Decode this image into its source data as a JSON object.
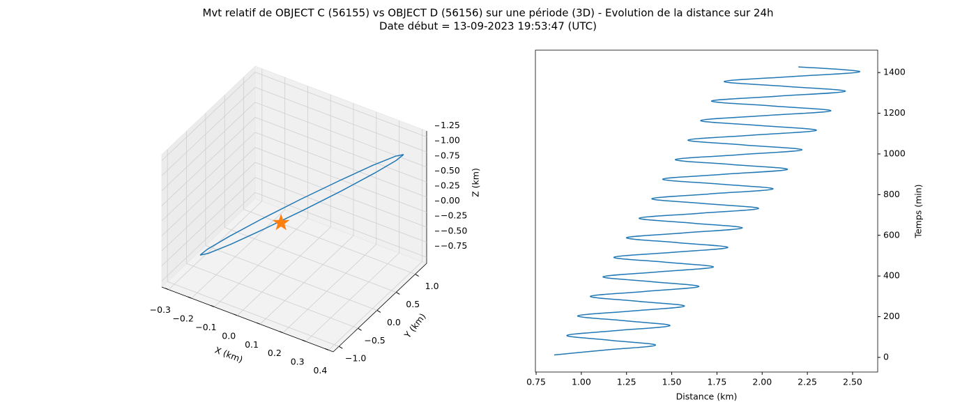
{
  "title": "Mvt relatif de OBJECT C (56155) vs OBJECT D (56156) sur une période (3D) - Evolution de la distance sur 24h",
  "subtitle": "Date début = 13-09-2023 19:53:47 (UTC)",
  "chart_data": [
    {
      "type": "line3d",
      "xlabel": "X (km)",
      "ylabel": "Y (km)",
      "zlabel": "Z (km)",
      "xlim": [
        -0.33,
        0.42
      ],
      "ylim": [
        -1.15,
        1.3
      ],
      "zlim": [
        -0.85,
        1.35
      ],
      "xticks": [
        {
          "value": -0.3,
          "label": "−0.3"
        },
        {
          "value": -0.2,
          "label": "−0.2"
        },
        {
          "value": -0.1,
          "label": "−0.1"
        },
        {
          "value": 0,
          "label": "0.0"
        },
        0.1,
        0.2,
        0.3,
        0.4
      ],
      "yticks": [
        {
          "value": -1,
          "label": "−1.0"
        },
        {
          "value": -0.5,
          "label": "−0.5"
        },
        {
          "value": 0,
          "label": "0.0"
        },
        0.5,
        {
          "value": 1,
          "label": "1.0"
        }
      ],
      "zticks": [
        {
          "value": -0.75,
          "label": "−0.75"
        },
        {
          "value": -0.5,
          "label": "−0.50"
        },
        {
          "value": -0.25,
          "label": "−0.25"
        },
        {
          "value": 0,
          "label": "0.00"
        },
        0.25,
        {
          "value": 0.5,
          "label": "0.50"
        },
        0.75,
        {
          "value": 1,
          "label": "1.00"
        },
        1.25
      ],
      "grid": true,
      "series": [
        {
          "color": "#1f77b4",
          "x": [
            0.376,
            0.356,
            0.292,
            0.194,
            0.076,
            -0.044,
            -0.146,
            -0.217,
            -0.244,
            -0.224,
            -0.16,
            -0.062,
            0.056,
            0.176,
            0.278,
            0.349,
            0.376
          ],
          "y": [
            0.96,
            0.887,
            0.702,
            0.433,
            0.12,
            -0.188,
            -0.444,
            -0.61,
            -0.66,
            -0.587,
            -0.402,
            -0.133,
            0.18,
            0.488,
            0.744,
            0.91,
            0.96
          ],
          "z": [
            1.1,
            1.017,
            0.825,
            0.554,
            0.245,
            -0.055,
            -0.3,
            -0.453,
            -0.49,
            -0.407,
            -0.215,
            0.056,
            0.365,
            0.665,
            0.91,
            1.063,
            1.1
          ]
        },
        {
          "color": "#ff7f0e",
          "marker": "star",
          "x": [
            0
          ],
          "y": [
            0
          ],
          "z": [
            0
          ]
        }
      ]
    },
    {
      "type": "line",
      "xlabel": "Distance (km)",
      "ylabel": "Temps (min)",
      "y_axis_side": "right",
      "color": "#1f77b4",
      "xlim": [
        0.746,
        2.639
      ],
      "ylim": [
        -72,
        1510
      ],
      "xticks": [
        0.75,
        {
          "value": 1,
          "label": "1.00"
        },
        1.25,
        {
          "value": 1.5,
          "label": "1.50"
        },
        1.75,
        {
          "value": 2,
          "label": "2.00"
        },
        2.25,
        {
          "value": 2.5,
          "label": "2.50"
        }
      ],
      "yticks": [
        0,
        200,
        400,
        600,
        800,
        1000,
        1200,
        1400
      ],
      "x": [
        0.85,
        1.13,
        1.41,
        1.16,
        0.92,
        1.2,
        1.49,
        1.24,
        0.98,
        1.28,
        1.57,
        1.31,
        1.05,
        1.35,
        1.65,
        1.39,
        1.12,
        1.42,
        1.73,
        1.46,
        1.18,
        1.5,
        1.81,
        1.53,
        1.25,
        1.57,
        1.89,
        1.61,
        1.32,
        1.65,
        1.98,
        1.68,
        1.39,
        1.72,
        2.06,
        1.76,
        1.45,
        1.79,
        2.14,
        1.83,
        1.52,
        1.87,
        2.22,
        1.9,
        1.59,
        1.94,
        2.3,
        1.98,
        1.66,
        2.01,
        2.38,
        2.05,
        1.72,
        2.09,
        2.46,
        2.13,
        1.79,
        2.16,
        2.54,
        2.2
      ],
      "y": [
        12,
        36,
        60,
        84,
        108,
        132,
        156,
        180,
        204,
        228,
        252,
        276,
        300,
        324,
        348,
        372,
        396,
        420,
        444,
        468,
        492,
        516,
        540,
        564,
        588,
        612,
        636,
        660,
        684,
        708,
        732,
        756,
        780,
        804,
        828,
        852,
        876,
        900,
        924,
        948,
        972,
        996,
        1020,
        1044,
        1068,
        1092,
        1116,
        1140,
        1164,
        1188,
        1212,
        1236,
        1260,
        1284,
        1308,
        1332,
        1356,
        1380,
        1404,
        1428
      ]
    }
  ]
}
